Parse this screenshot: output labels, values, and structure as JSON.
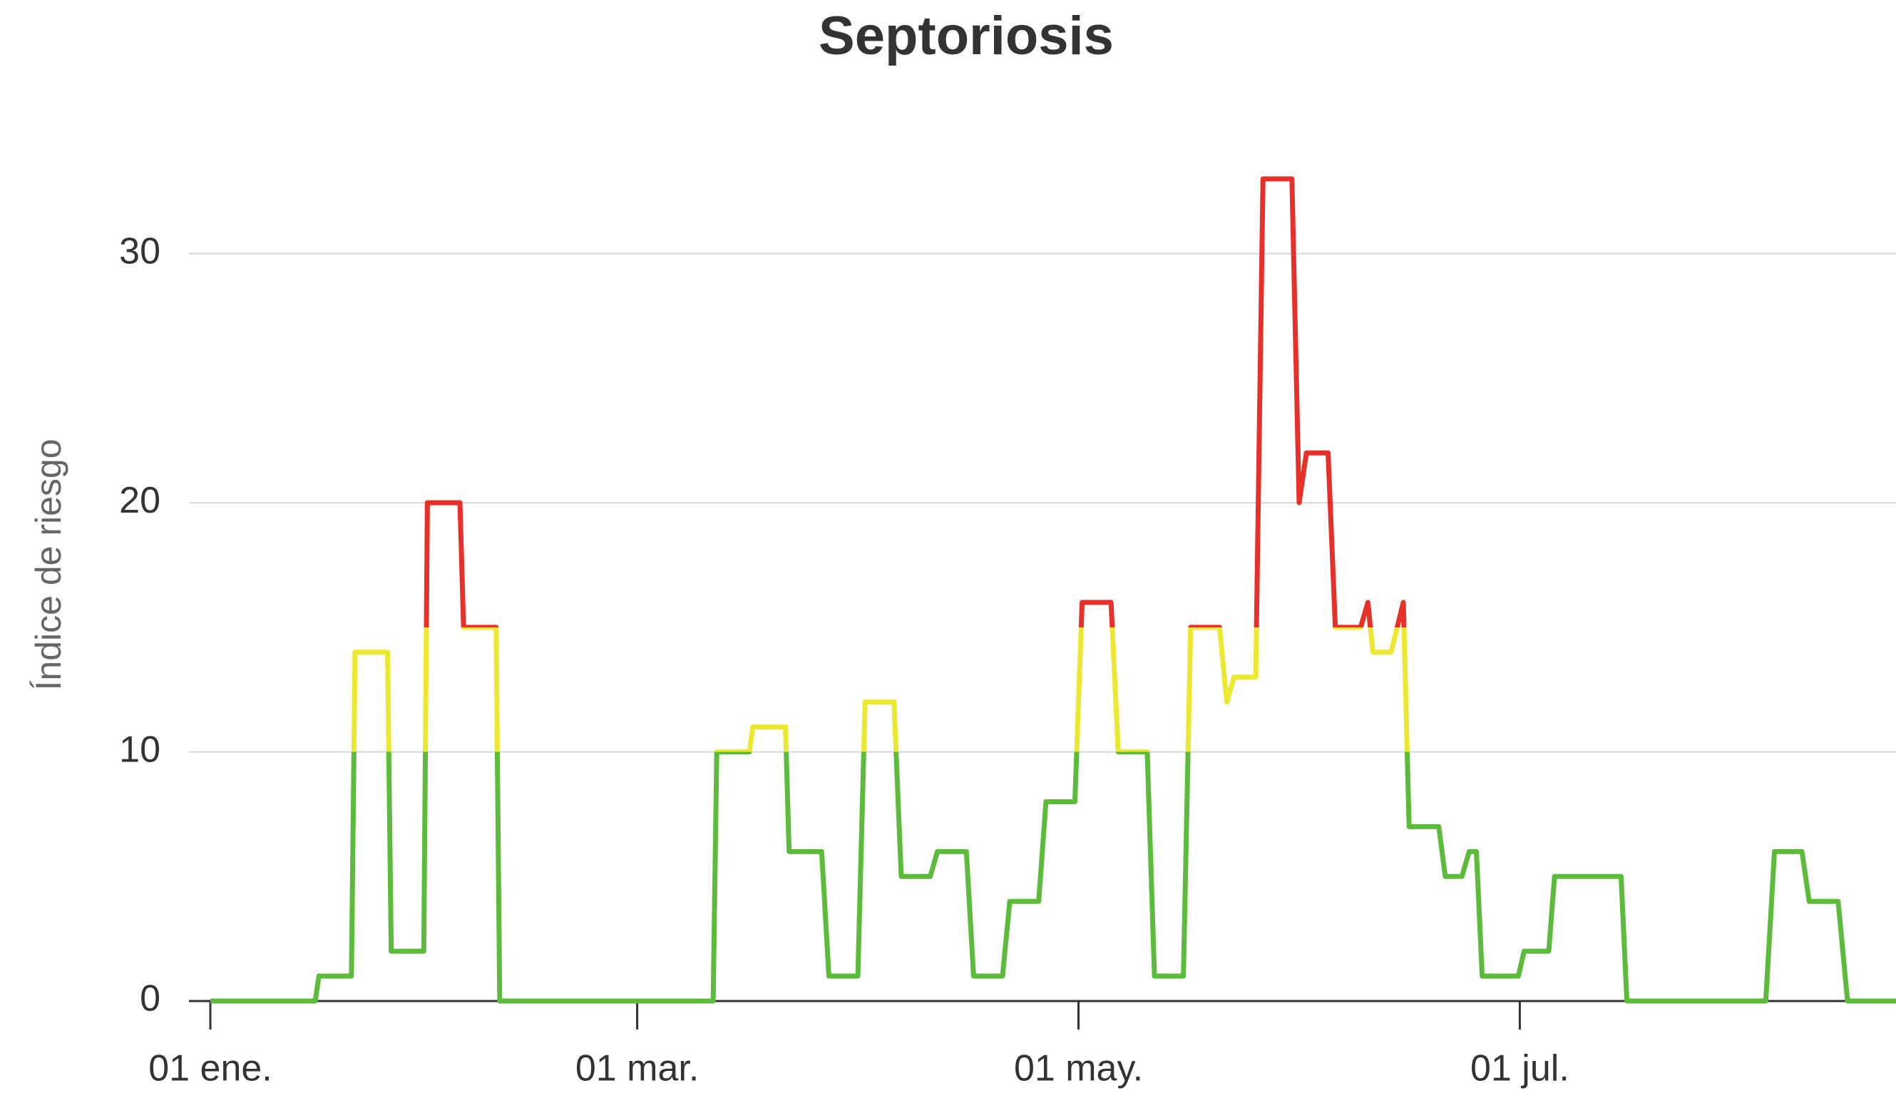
{
  "chart_data": {
    "type": "line",
    "title": "Septoriosis",
    "y_label": "Índice de riesgo",
    "x": [
      0,
      14.5,
      15,
      19.5,
      20,
      24.5,
      25,
      29.5,
      30,
      34.5,
      35,
      39.5,
      40,
      69.5,
      70,
      74.5,
      75,
      79.5,
      80,
      84.5,
      85.5,
      89.5,
      90.5,
      94.5,
      95.5,
      99.5,
      100.5,
      104.5,
      105.5,
      109.5,
      110.5,
      114.5,
      115.5,
      119.5,
      120.5,
      124.5,
      125.5,
      129.5,
      130.5,
      134.5,
      135.5,
      139.5,
      140.5,
      141.5,
      144.5,
      145.5,
      149.5,
      150.5,
      151.5,
      154.5,
      155.5,
      159,
      160,
      160.7,
      163.2,
      164.9,
      165.7,
      169.8,
      170.7,
      173,
      174,
      175,
      175.8,
      180.8,
      181.6,
      185,
      185.8,
      195,
      195.8,
      215,
      216.2,
      220,
      221,
      225,
      226.3,
      233
    ],
    "series": [
      {
        "name": "Índice de riesgo",
        "values": [
          0,
          0,
          1,
          1,
          14,
          14,
          2,
          2,
          20,
          20,
          15,
          15,
          0,
          0,
          10,
          10,
          11,
          11,
          6,
          6,
          1,
          1,
          12,
          12,
          5,
          5,
          6,
          6,
          1,
          1,
          4,
          4,
          8,
          8,
          16,
          16,
          10,
          10,
          1,
          1,
          15,
          15,
          12,
          13,
          13,
          33,
          33,
          20,
          22,
          22,
          15,
          15,
          16,
          14,
          14,
          16,
          7,
          7,
          5,
          5,
          6,
          6,
          1,
          1,
          2,
          2,
          5,
          5,
          0,
          0,
          6,
          6,
          4,
          4,
          0,
          0
        ]
      }
    ],
    "zones": [
      {
        "value": 10,
        "color": "#5dbb3c"
      },
      {
        "value": 15,
        "color": "#ece830"
      },
      {
        "color": "#e8302b"
      }
    ],
    "xlim": [
      0,
      233
    ],
    "xticks": [
      {
        "value": 0,
        "label": "01 ene."
      },
      {
        "value": 59,
        "label": "01 mar."
      },
      {
        "value": 120,
        "label": "01 may."
      },
      {
        "value": 181,
        "label": "01 jul."
      }
    ],
    "ylim": [
      0,
      35
    ],
    "yticks": [
      0,
      10,
      20,
      30
    ],
    "grid": true
  }
}
